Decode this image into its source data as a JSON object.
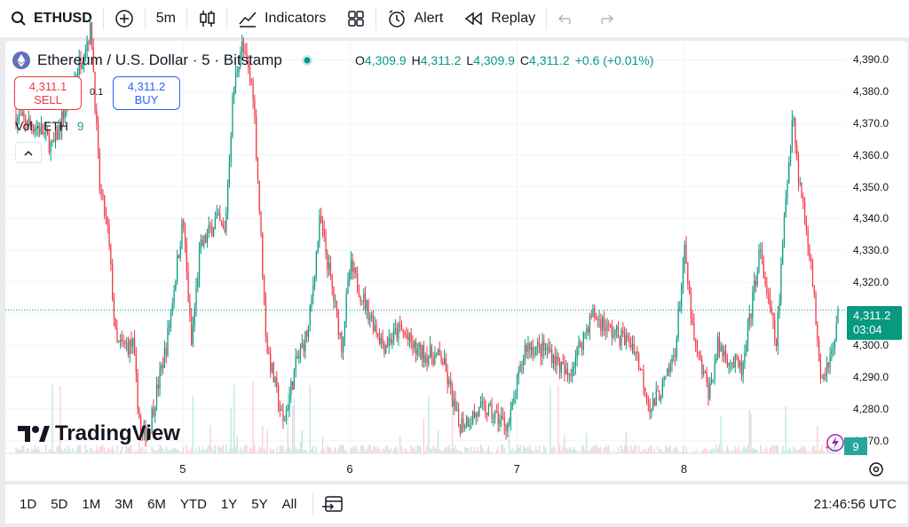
{
  "toolbar": {
    "symbol": "ETHUSD",
    "interval": "5m",
    "indicators_label": "Indicators",
    "alert_label": "Alert",
    "replay_label": "Replay"
  },
  "legend": {
    "title": "Ethereum / U.S. Dollar · 5 · Bitstamp",
    "o_key": "O",
    "o_val": "4,309.9",
    "h_key": "H",
    "h_val": "4,311.2",
    "l_key": "L",
    "l_val": "4,309.9",
    "c_key": "C",
    "c_val": "4,311.2",
    "change": "+0.6 (+0.01%)"
  },
  "trade": {
    "sell_price": "4,311.1",
    "sell_label": "SELL",
    "buy_price": "4,311.2",
    "buy_label": "BUY",
    "spread": "0.1"
  },
  "volume": {
    "label": "Vol · ETH",
    "value": "9"
  },
  "price_tag": {
    "price": "4,311.2",
    "countdown": "03:04"
  },
  "vol_tag": "9",
  "logo_text": "TradingView",
  "bottom": {
    "ranges": [
      "1D",
      "5D",
      "1M",
      "3M",
      "6M",
      "YTD",
      "1Y",
      "5Y",
      "All"
    ],
    "time": "21:46:56 UTC"
  },
  "colors": {
    "up": "#089981",
    "down": "#f23645",
    "accent": "#2962ff"
  },
  "chart_data": {
    "type": "candlestick",
    "title": "Ethereum / U.S. Dollar · 5 · Bitstamp",
    "y_ticks": [
      "4,390.0",
      "4,380.0",
      "4,370.0",
      "4,360.0",
      "4,350.0",
      "4,340.0",
      "4,330.0",
      "4,320.0",
      "4,310.0",
      "4,300.0",
      "4,290.0",
      "4,280.0",
      "4,270.0"
    ],
    "x_ticks": [
      "5",
      "6",
      "7",
      "8"
    ],
    "ylim": [
      4266,
      4396
    ],
    "x_range": [
      4.0,
      8.92
    ],
    "last_price": 4311.2,
    "path": [
      [
        4.0,
        4372
      ],
      [
        4.15,
        4368
      ],
      [
        4.22,
        4362
      ],
      [
        4.3,
        4376
      ],
      [
        4.45,
        4400
      ],
      [
        4.5,
        4350
      ],
      [
        4.55,
        4336
      ],
      [
        4.6,
        4300
      ],
      [
        4.7,
        4300
      ],
      [
        4.75,
        4270
      ],
      [
        4.8,
        4275
      ],
      [
        4.9,
        4300
      ],
      [
        5.0,
        4340
      ],
      [
        5.05,
        4300
      ],
      [
        5.1,
        4330
      ],
      [
        5.2,
        4340
      ],
      [
        5.25,
        4335
      ],
      [
        5.3,
        4380
      ],
      [
        5.35,
        4395
      ],
      [
        5.42,
        4380
      ],
      [
        5.5,
        4300
      ],
      [
        5.6,
        4275
      ],
      [
        5.68,
        4295
      ],
      [
        5.75,
        4305
      ],
      [
        5.82,
        4340
      ],
      [
        5.95,
        4300
      ],
      [
        6.0,
        4325
      ],
      [
        6.1,
        4312
      ],
      [
        6.2,
        4300
      ],
      [
        6.3,
        4305
      ],
      [
        6.4,
        4298
      ],
      [
        6.55,
        4296
      ],
      [
        6.65,
        4275
      ],
      [
        6.8,
        4280
      ],
      [
        6.95,
        4275
      ],
      [
        7.05,
        4300
      ],
      [
        7.2,
        4298
      ],
      [
        7.3,
        4290
      ],
      [
        7.45,
        4310
      ],
      [
        7.55,
        4305
      ],
      [
        7.7,
        4300
      ],
      [
        7.8,
        4280
      ],
      [
        7.9,
        4290
      ],
      [
        7.95,
        4300
      ],
      [
        8.0,
        4330
      ],
      [
        8.06,
        4300
      ],
      [
        8.15,
        4285
      ],
      [
        8.2,
        4300
      ],
      [
        8.28,
        4295
      ],
      [
        8.35,
        4292
      ],
      [
        8.45,
        4330
      ],
      [
        8.55,
        4300
      ],
      [
        8.6,
        4340
      ],
      [
        8.65,
        4375
      ],
      [
        8.68,
        4355
      ],
      [
        8.75,
        4330
      ],
      [
        8.82,
        4290
      ],
      [
        8.9,
        4300
      ],
      [
        8.92,
        4311.2
      ]
    ],
    "legend": "none",
    "grid": true
  }
}
